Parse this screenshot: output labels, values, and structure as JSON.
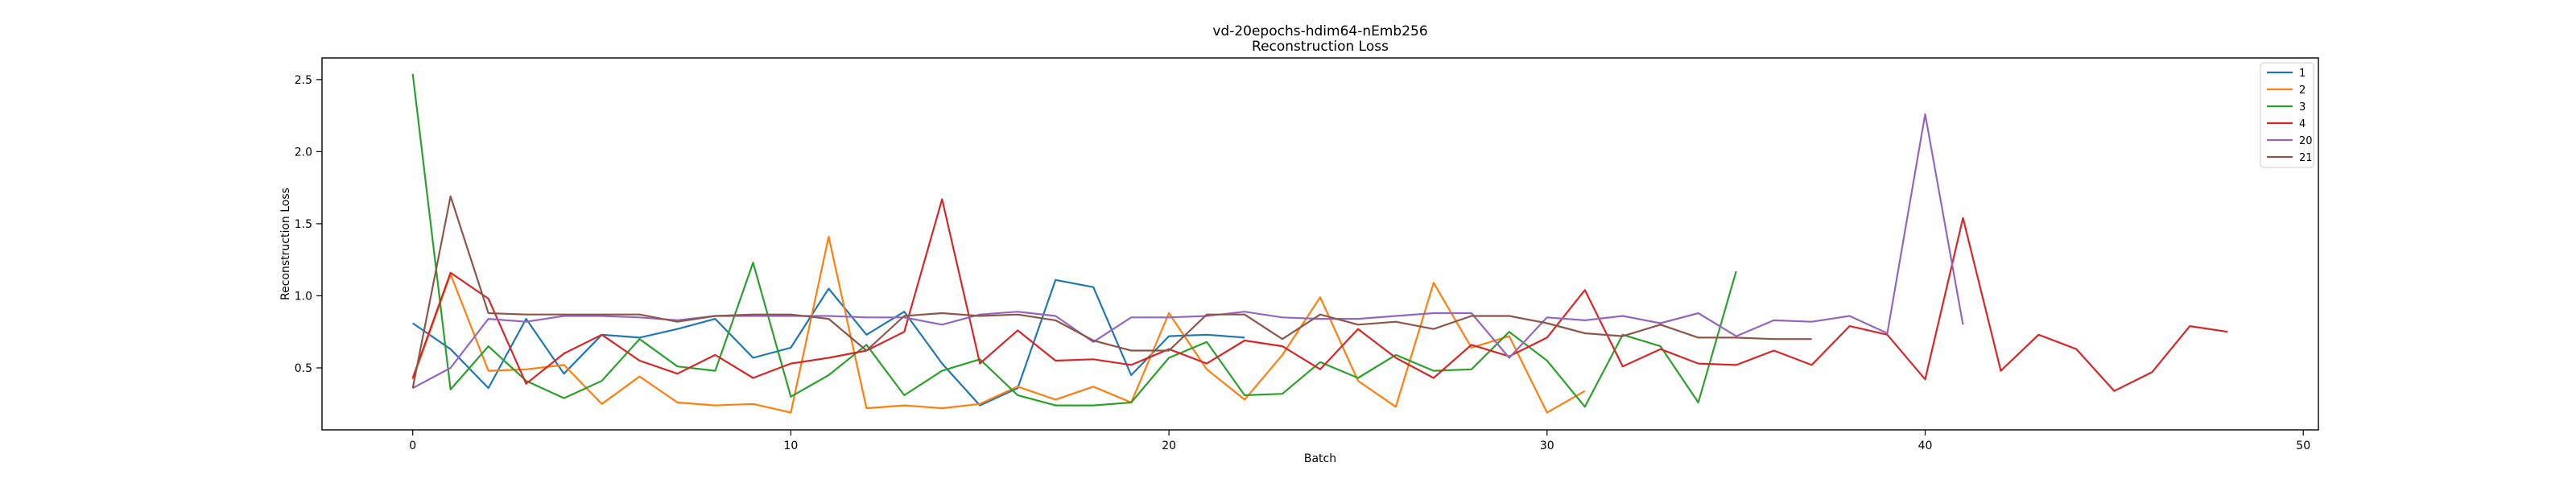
{
  "chart_data": {
    "type": "line",
    "title": "vd-20epochs-hdim64-nEmb256",
    "subtitle": "Reconstruction Loss",
    "xlabel": "Batch",
    "ylabel": "Reconstruction Loss",
    "xlim": [
      -2.4,
      50.4
    ],
    "ylim": [
      0.07,
      2.65
    ],
    "xticks": [
      0,
      10,
      20,
      30,
      40,
      50
    ],
    "yticks": [
      0.5,
      1.0,
      1.5,
      2.0,
      2.5
    ],
    "xtick_labels": [
      "0",
      "10",
      "20",
      "30",
      "40",
      "50"
    ],
    "ytick_labels": [
      "0.5",
      "1.0",
      "1.5",
      "2.0",
      "2.5"
    ],
    "grid": false,
    "legend_position": "top-right",
    "series": [
      {
        "name": "1",
        "color": "#1f77b4",
        "values": [
          0.81,
          0.63,
          0.36,
          0.84,
          0.46,
          0.73,
          0.71,
          0.77,
          0.84,
          0.57,
          0.64,
          1.05,
          0.73,
          0.89,
          0.53,
          0.24,
          0.36,
          1.11,
          1.06,
          0.45,
          0.72,
          0.73,
          0.71
        ]
      },
      {
        "name": "2",
        "color": "#ff7f0e",
        "values": [
          0.42,
          1.15,
          0.48,
          0.49,
          0.52,
          0.25,
          0.44,
          0.26,
          0.24,
          0.25,
          0.19,
          1.41,
          0.22,
          0.24,
          0.22,
          0.25,
          0.37,
          0.28,
          0.37,
          0.26,
          0.88,
          0.49,
          0.28,
          0.59,
          0.99,
          0.41,
          0.23,
          1.09,
          0.64,
          0.72,
          0.19,
          0.34
        ]
      },
      {
        "name": "3",
        "color": "#2ca02c",
        "values": [
          2.54,
          0.35,
          0.65,
          0.41,
          0.29,
          0.41,
          0.7,
          0.51,
          0.48,
          1.23,
          0.3,
          0.45,
          0.66,
          0.31,
          0.48,
          0.56,
          0.31,
          0.24,
          0.24,
          0.26,
          0.57,
          0.68,
          0.31,
          0.32,
          0.54,
          0.43,
          0.59,
          0.48,
          0.49,
          0.75,
          0.55,
          0.23,
          0.73,
          0.65,
          0.26,
          1.17
        ]
      },
      {
        "name": "4",
        "color": "#d62728",
        "values": [
          0.43,
          1.16,
          0.98,
          0.39,
          0.6,
          0.73,
          0.55,
          0.46,
          0.59,
          0.43,
          0.53,
          0.57,
          0.62,
          0.75,
          1.67,
          0.53,
          0.76,
          0.55,
          0.56,
          0.52,
          0.63,
          0.53,
          0.69,
          0.65,
          0.49,
          0.77,
          0.57,
          0.43,
          0.66,
          0.58,
          0.71,
          1.04,
          0.51,
          0.63,
          0.53,
          0.52,
          0.62,
          0.52,
          0.79,
          0.73,
          0.42,
          1.54,
          0.48,
          0.73,
          0.63,
          0.34,
          0.47,
          0.79,
          0.75
        ]
      },
      {
        "name": "20",
        "color": "#9467bd",
        "values": [
          0.36,
          0.5,
          0.84,
          0.82,
          0.86,
          0.86,
          0.85,
          0.83,
          0.86,
          0.86,
          0.86,
          0.86,
          0.85,
          0.85,
          0.8,
          0.87,
          0.89,
          0.86,
          0.68,
          0.85,
          0.85,
          0.86,
          0.89,
          0.85,
          0.84,
          0.84,
          0.86,
          0.88,
          0.88,
          0.57,
          0.85,
          0.83,
          0.86,
          0.81,
          0.88,
          0.72,
          0.83,
          0.82,
          0.86,
          0.74,
          2.26,
          0.8
        ]
      },
      {
        "name": "21",
        "color": "#8c564b",
        "values": [
          0.36,
          1.69,
          0.88,
          0.87,
          0.87,
          0.87,
          0.87,
          0.82,
          0.86,
          0.87,
          0.87,
          0.84,
          0.62,
          0.86,
          0.88,
          0.86,
          0.87,
          0.83,
          0.69,
          0.62,
          0.62,
          0.87,
          0.87,
          0.7,
          0.87,
          0.8,
          0.82,
          0.77,
          0.86,
          0.86,
          0.81,
          0.74,
          0.72,
          0.8,
          0.71,
          0.71,
          0.7,
          0.7
        ]
      }
    ]
  }
}
